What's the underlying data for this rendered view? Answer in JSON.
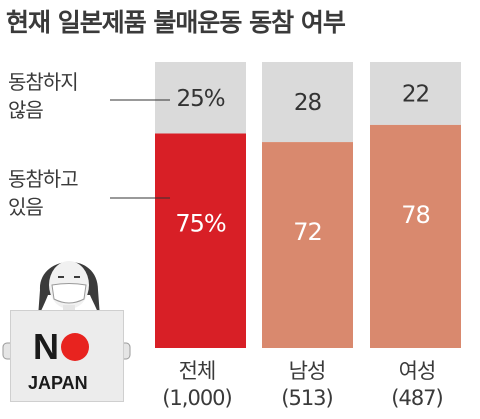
{
  "title": "현재 일본제품 불매운동 동참 여부",
  "chart_data": {
    "type": "bar",
    "stacked": true,
    "ylim": [
      0,
      100
    ],
    "categories": [
      "전체",
      "남성",
      "여성"
    ],
    "category_counts": [
      "(1,000)",
      "(513)",
      "(487)"
    ],
    "series": [
      {
        "name": "동참하고 있음",
        "values": [
          75,
          72,
          78
        ],
        "labels": [
          "75%",
          "72",
          "78"
        ],
        "colors": [
          "#d81f26",
          "#d9896e",
          "#d9896e"
        ]
      },
      {
        "name": "동참하지 않음",
        "values": [
          25,
          28,
          22
        ],
        "labels": [
          "25%",
          "28",
          "22"
        ],
        "colors": [
          "#dadada",
          "#dadada",
          "#dadada"
        ]
      }
    ],
    "legend": {
      "not_participating": [
        "동참하지",
        "않음"
      ],
      "participating": [
        "동참하고",
        "있음"
      ]
    }
  },
  "sign": {
    "text_no": "N",
    "text_japan": "JAPAN",
    "circle_color": "#e8231f"
  }
}
